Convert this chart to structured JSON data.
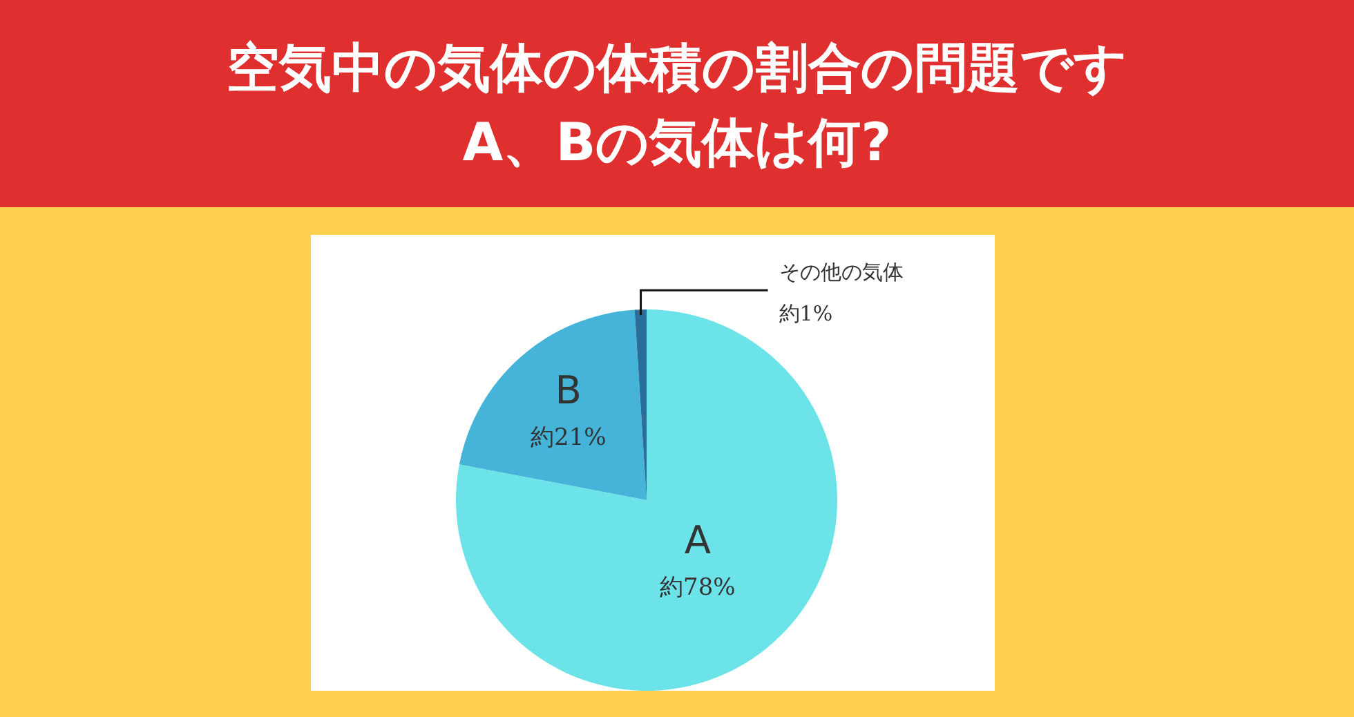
{
  "chart_data": {
    "type": "pie",
    "title": "空気中の気体の体積の割合の問題です\nA、Bの気体は何?",
    "categories": [
      "A",
      "B",
      "その他の気体"
    ],
    "values": [
      78,
      21,
      1
    ],
    "value_labels": [
      "約78%",
      "約21%",
      "約1%"
    ],
    "colors": [
      "#6ce3e8",
      "#45b4d8",
      "#2a6d9a"
    ],
    "legend": false
  }
}
